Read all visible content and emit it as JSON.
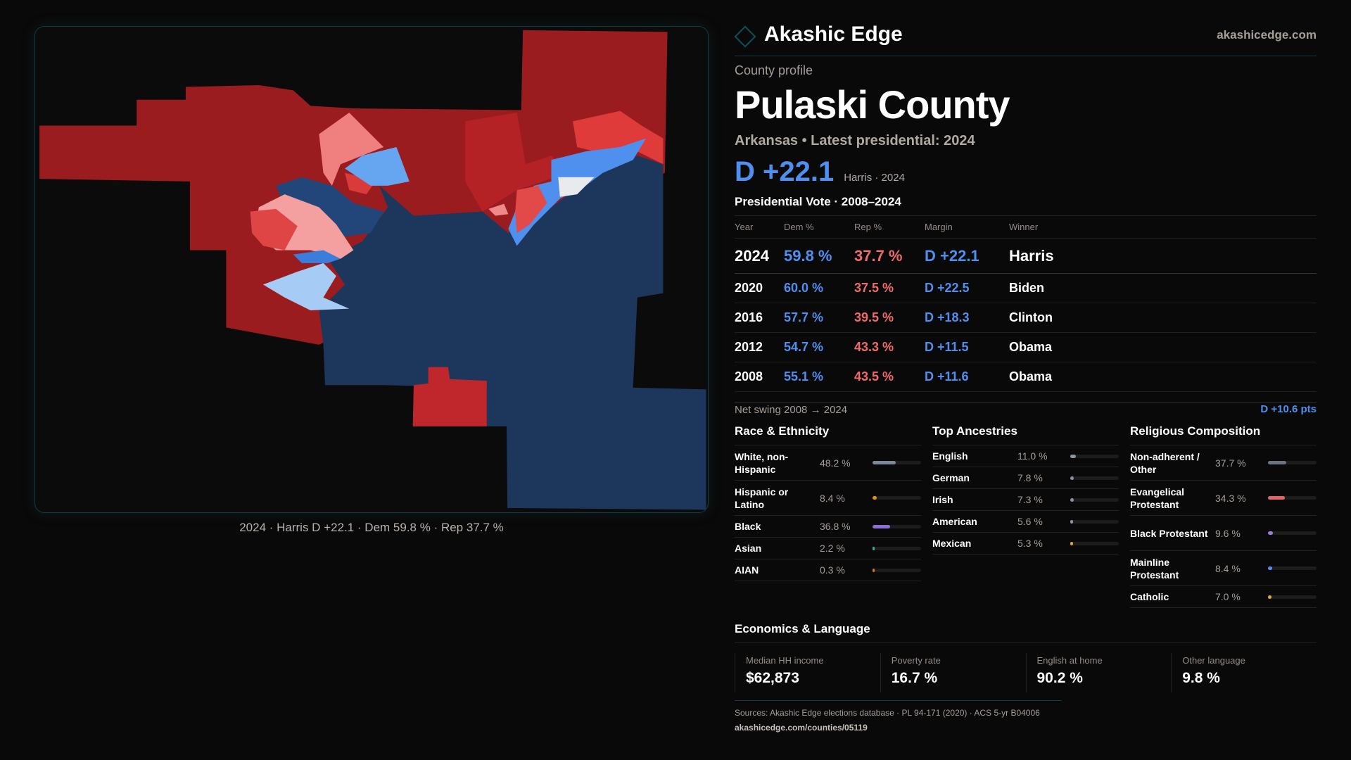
{
  "brand": {
    "name": "Akashic Edge",
    "url": "akashicedge.com"
  },
  "profile": {
    "kicker": "County profile",
    "title": "Pulaski County",
    "subtitle": "Arkansas • Latest presidential: 2024",
    "margin": "D +22.1",
    "margin_note": "Harris · 2024"
  },
  "map": {
    "caption": "2024 · Harris D +22.1 · Dem 59.8 % · Rep 37.7 %"
  },
  "votes": {
    "title": "Presidential Vote · 2008–2024",
    "headers": [
      "Year",
      "Dem %",
      "Rep %",
      "Margin",
      "Winner"
    ],
    "rows": [
      [
        "2024",
        "59.8 %",
        "37.7 %",
        "D +22.1",
        "Harris"
      ],
      [
        "2020",
        "60.0 %",
        "37.5 %",
        "D +22.5",
        "Biden"
      ],
      [
        "2016",
        "57.7 %",
        "39.5 %",
        "D +18.3",
        "Clinton"
      ],
      [
        "2012",
        "54.7 %",
        "43.3 %",
        "D +11.5",
        "Obama"
      ],
      [
        "2008",
        "55.1 %",
        "43.5 %",
        "D +11.6",
        "Obama"
      ]
    ],
    "swing_label": "Net swing 2008 → 2024",
    "swing_value": "D +10.6 pts"
  },
  "demo": [
    {
      "title": "Race & Ethnicity",
      "items": [
        {
          "label": "White, non-Hispanic",
          "value": "48.2 %",
          "pct": 48.2,
          "color": "#7c8799"
        },
        {
          "label": "Hispanic or Latino",
          "value": "8.4 %",
          "pct": 8.4,
          "color": "#e0901c"
        },
        {
          "label": "Black",
          "value": "36.8 %",
          "pct": 36.8,
          "color": "#8b6fd6"
        },
        {
          "label": "Asian",
          "value": "2.2 %",
          "pct": 2.2,
          "color": "#2bb39a"
        },
        {
          "label": "AIAN",
          "value": "0.3 %",
          "pct": 0.3,
          "color": "#c9772c"
        }
      ]
    },
    {
      "title": "Top Ancestries",
      "items": [
        {
          "label": "English",
          "value": "11.0 %",
          "pct": 11.0,
          "color": "#8a93a3"
        },
        {
          "label": "German",
          "value": "7.8 %",
          "pct": 7.8,
          "color": "#8a93a3"
        },
        {
          "label": "Irish",
          "value": "7.3 %",
          "pct": 7.3,
          "color": "#8a93a3"
        },
        {
          "label": "American",
          "value": "5.6 %",
          "pct": 5.6,
          "color": "#8a93a3"
        },
        {
          "label": "Mexican",
          "value": "5.3 %",
          "pct": 5.3,
          "color": "#e0a020"
        }
      ]
    },
    {
      "title": "Religious Composition",
      "items": [
        {
          "label": "Non-adherent / Other",
          "value": "37.7 %",
          "pct": 37.7,
          "color": "#6b7280"
        },
        {
          "label": "Evangelical Protestant",
          "value": "34.3 %",
          "pct": 34.3,
          "color": "#e06666"
        },
        {
          "label": "Black Protestant",
          "value": "9.6 %",
          "pct": 9.6,
          "color": "#9b7be0"
        },
        {
          "label": "Mainline Protestant",
          "value": "8.4 %",
          "pct": 8.4,
          "color": "#4f8ff0"
        },
        {
          "label": "Catholic",
          "value": "7.0 %",
          "pct": 7.0,
          "color": "#e0b020"
        }
      ]
    }
  ],
  "econ": {
    "title": "Economics & Language",
    "stats": [
      {
        "label": "Median HH income",
        "value": "$62,873"
      },
      {
        "label": "Poverty rate",
        "value": "16.7 %"
      },
      {
        "label": "English at home",
        "value": "90.2 %"
      },
      {
        "label": "Other language",
        "value": "9.8 %"
      }
    ]
  },
  "sources": {
    "text": "Sources: Akashic Edge elections database · PL 94-171 (2020) · ACS 5-yr B04006",
    "link": "akashicedge.com/counties/05119"
  }
}
